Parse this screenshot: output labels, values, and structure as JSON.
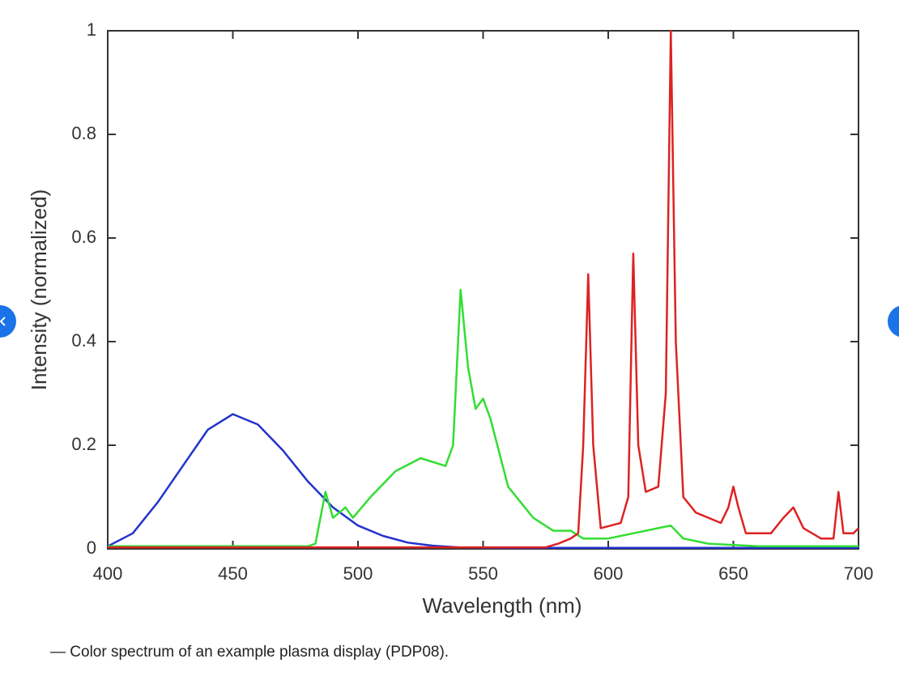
{
  "chart_data": {
    "type": "line",
    "x_label": "Wavelength (nm)",
    "y_label": "Intensity (normalized)",
    "xlim": [
      400,
      700
    ],
    "xticks": [
      400,
      450,
      500,
      550,
      600,
      650,
      700
    ],
    "ylim": [
      0,
      1
    ],
    "yticks": [
      0,
      0.2,
      0.4,
      0.6,
      0.8,
      1
    ],
    "series": [
      {
        "color": "#2233cc",
        "x": [
          400,
          410,
          420,
          430,
          440,
          450,
          460,
          470,
          480,
          490,
          500,
          510,
          520,
          530,
          540,
          560,
          600,
          700
        ],
        "values": [
          0.005,
          0.03,
          0.09,
          0.16,
          0.23,
          0.26,
          0.24,
          0.19,
          0.13,
          0.08,
          0.045,
          0.025,
          0.012,
          0.006,
          0.003,
          0.002,
          0.002,
          0.002
        ]
      },
      {
        "color": "#33dd33",
        "x": [
          400,
          480,
          483,
          487,
          490,
          495,
          498,
          505,
          515,
          525,
          535,
          538,
          541,
          544,
          547,
          550,
          553,
          560,
          570,
          578,
          585,
          590,
          600,
          610,
          620,
          625,
          630,
          640,
          660,
          700
        ],
        "values": [
          0.005,
          0.005,
          0.01,
          0.11,
          0.06,
          0.08,
          0.06,
          0.1,
          0.15,
          0.175,
          0.16,
          0.2,
          0.5,
          0.35,
          0.27,
          0.29,
          0.25,
          0.12,
          0.06,
          0.035,
          0.035,
          0.02,
          0.02,
          0.03,
          0.04,
          0.045,
          0.02,
          0.01,
          0.005,
          0.005
        ]
      },
      {
        "color": "#dd2222",
        "x": [
          400,
          575,
          580,
          585,
          588,
          590,
          592,
          594,
          597,
          605,
          608,
          610,
          612,
          615,
          620,
          623,
          625,
          627,
          630,
          635,
          645,
          648,
          650,
          652,
          655,
          665,
          670,
          674,
          678,
          685,
          690,
          692,
          694,
          698,
          700
        ],
        "values": [
          0.003,
          0.003,
          0.01,
          0.02,
          0.03,
          0.2,
          0.53,
          0.2,
          0.04,
          0.05,
          0.1,
          0.57,
          0.2,
          0.11,
          0.12,
          0.3,
          1.0,
          0.4,
          0.1,
          0.07,
          0.05,
          0.08,
          0.12,
          0.08,
          0.03,
          0.03,
          0.06,
          0.08,
          0.04,
          0.02,
          0.02,
          0.11,
          0.03,
          0.03,
          0.04
        ]
      }
    ]
  },
  "caption": "— Color spectrum of an example plasma display (PDP08)."
}
